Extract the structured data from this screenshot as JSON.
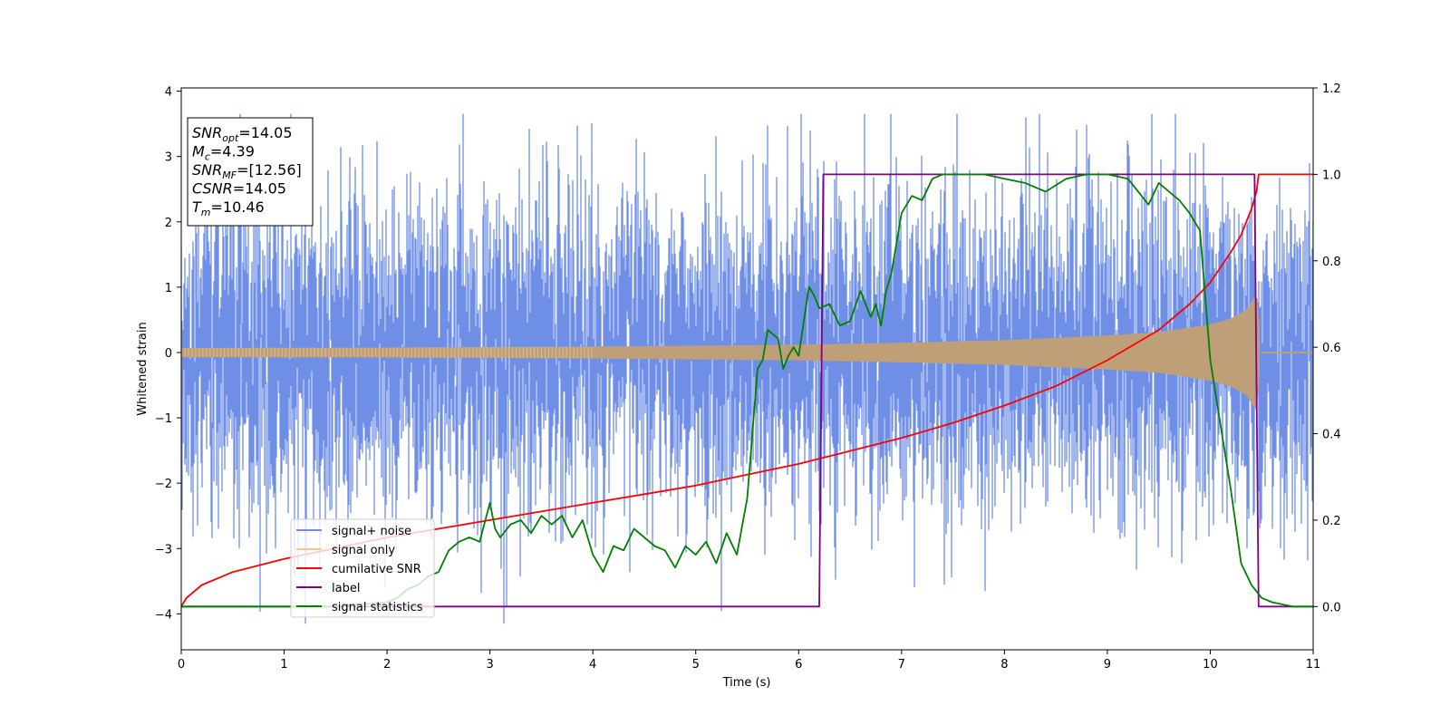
{
  "chart_data": {
    "type": "line",
    "xlabel": "Time (s)",
    "ylabel_left": "Whitened strain",
    "ylabel_right": "",
    "xlim": [
      0,
      11
    ],
    "ylim_left": [
      -4.55,
      4.05
    ],
    "ylim_right": [
      -0.1,
      1.2
    ],
    "x_ticks": [
      "0",
      "1",
      "2",
      "3",
      "4",
      "5",
      "6",
      "7",
      "8",
      "9",
      "10",
      "11"
    ],
    "y_ticks_left": [
      "−4",
      "−3",
      "−2",
      "−1",
      "0",
      "1",
      "2",
      "3",
      "4"
    ],
    "y_ticks_right": [
      "0.0",
      "0.2",
      "0.4",
      "0.6",
      "0.8",
      "1.0",
      "1.2"
    ],
    "grid": false,
    "legend_position": "lower-left",
    "colors": {
      "signal_noise": "#6f8fe6",
      "signal_only": "#f3c98b",
      "overlap": "#bf9f78",
      "cumulative_snr": "#ff0000",
      "label": "#800080",
      "signal_statistics": "#008000"
    },
    "series": [
      {
        "name": "signal+ noise",
        "axis": "left",
        "description_values": {
          "band_mean_amplitude": 1.3,
          "peak_min": -4.15,
          "peak_max": 3.65
        }
      },
      {
        "name": "signal only",
        "axis": "left",
        "envelope": {
          "x": [
            0,
            2,
            4,
            6,
            7,
            8,
            9,
            9.5,
            10,
            10.2,
            10.35,
            10.45,
            10.5,
            11
          ],
          "amplitude": [
            0.07,
            0.075,
            0.09,
            0.12,
            0.15,
            0.19,
            0.26,
            0.31,
            0.43,
            0.52,
            0.65,
            0.9,
            0.0,
            0.0
          ]
        }
      },
      {
        "name": "cumilative SNR",
        "axis": "right",
        "x": [
          0,
          0.05,
          0.2,
          0.5,
          1,
          1.5,
          2,
          2.5,
          3,
          3.5,
          4,
          4.5,
          5,
          5.5,
          6,
          6.5,
          7,
          7.5,
          8,
          8.5,
          9,
          9.5,
          9.8,
          10,
          10.2,
          10.3,
          10.4,
          10.45,
          10.47,
          11
        ],
        "y": [
          0.0,
          0.02,
          0.05,
          0.08,
          0.11,
          0.135,
          0.16,
          0.18,
          0.2,
          0.22,
          0.24,
          0.26,
          0.28,
          0.305,
          0.33,
          0.36,
          0.39,
          0.425,
          0.465,
          0.51,
          0.57,
          0.64,
          0.7,
          0.75,
          0.82,
          0.86,
          0.92,
          0.96,
          1.0,
          1.0
        ]
      },
      {
        "name": "label",
        "axis": "right",
        "x": [
          0,
          6.2,
          6.24,
          10.43,
          10.47,
          11
        ],
        "y": [
          0.0,
          0.0,
          1.0,
          1.0,
          0.0,
          0.0
        ]
      },
      {
        "name": "signal statistics",
        "axis": "right",
        "x": [
          0,
          1.0,
          1.5,
          2.0,
          2.1,
          2.2,
          2.3,
          2.4,
          2.5,
          2.6,
          2.7,
          2.8,
          2.9,
          3.0,
          3.05,
          3.1,
          3.2,
          3.3,
          3.4,
          3.5,
          3.6,
          3.7,
          3.8,
          3.9,
          4.0,
          4.1,
          4.2,
          4.3,
          4.4,
          4.5,
          4.6,
          4.7,
          4.8,
          4.9,
          5.0,
          5.1,
          5.2,
          5.3,
          5.4,
          5.5,
          5.6,
          5.65,
          5.7,
          5.8,
          5.85,
          5.9,
          5.95,
          6.0,
          6.1,
          6.15,
          6.2,
          6.3,
          6.4,
          6.5,
          6.6,
          6.7,
          6.75,
          6.8,
          6.85,
          6.9,
          7.0,
          7.1,
          7.2,
          7.3,
          7.4,
          7.6,
          7.8,
          8.0,
          8.2,
          8.4,
          8.6,
          8.8,
          9.0,
          9.2,
          9.4,
          9.5,
          9.6,
          9.7,
          9.8,
          9.9,
          10.0,
          10.1,
          10.2,
          10.3,
          10.4,
          10.5,
          10.6,
          10.8,
          11.0
        ],
        "y": [
          0.0,
          0.0,
          0.0,
          0.01,
          0.02,
          0.04,
          0.05,
          0.07,
          0.08,
          0.13,
          0.15,
          0.16,
          0.15,
          0.24,
          0.18,
          0.16,
          0.19,
          0.2,
          0.17,
          0.21,
          0.19,
          0.21,
          0.16,
          0.2,
          0.12,
          0.08,
          0.14,
          0.13,
          0.18,
          0.16,
          0.14,
          0.13,
          0.09,
          0.14,
          0.12,
          0.15,
          0.1,
          0.17,
          0.12,
          0.25,
          0.55,
          0.57,
          0.64,
          0.62,
          0.55,
          0.58,
          0.6,
          0.58,
          0.74,
          0.72,
          0.69,
          0.7,
          0.65,
          0.66,
          0.73,
          0.67,
          0.7,
          0.65,
          0.73,
          0.77,
          0.91,
          0.95,
          0.94,
          0.99,
          1.0,
          1.0,
          1.0,
          0.99,
          0.98,
          0.96,
          0.99,
          1.0,
          1.0,
          0.99,
          0.93,
          0.98,
          0.96,
          0.94,
          0.91,
          0.87,
          0.57,
          0.42,
          0.27,
          0.1,
          0.05,
          0.02,
          0.01,
          0.0,
          0.0
        ]
      }
    ],
    "annotation_box": {
      "lines": [
        {
          "sym": "SNR",
          "sub": "opt",
          "val": "=14.05"
        },
        {
          "sym": "M",
          "sub": "c",
          "val": "=4.39"
        },
        {
          "sym": "SNR",
          "sub": "MF",
          "val": "=[12.56]"
        },
        {
          "sym": "CSNR",
          "sub": "",
          "val": "=14.05"
        },
        {
          "sym": "T",
          "sub": "m",
          "val": "=10.46"
        }
      ]
    },
    "legend": [
      "signal+ noise",
      "signal only",
      "cumilative SNR",
      "label",
      "signal statistics"
    ]
  }
}
